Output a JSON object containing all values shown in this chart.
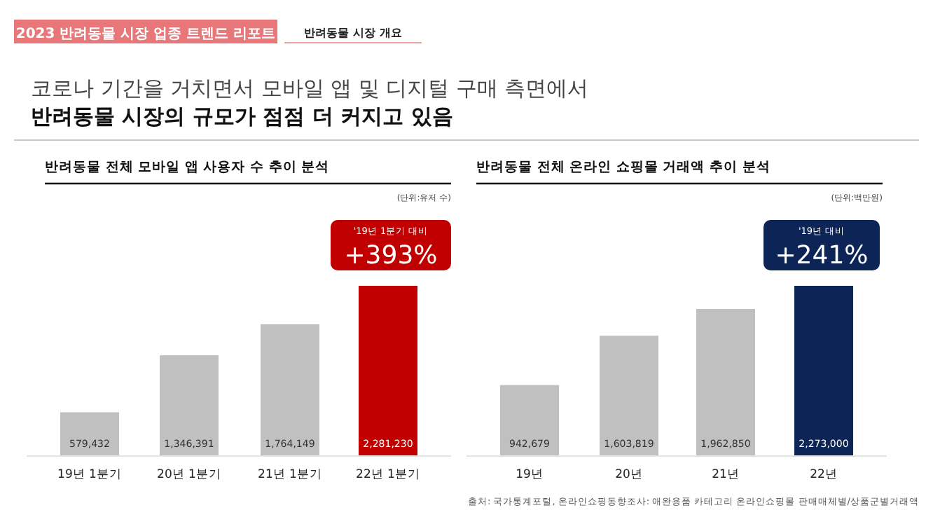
{
  "chart_data": [
    {
      "type": "other",
      "title": "코로나 기간을 거치면서 모바일 앱 및 디지털 구매 측면에서",
      "subtitle": "반려동물 시장의 규모가 점점 더 커지고 있음",
      "annotations": [
        "2023 반려동물 시장 업종 트렌드 리포트",
        "반려동물 시장 개요",
        "출처: 국가통계포털, 온라인쇼핑동향조사: 애완용품 카테고리 온라인쇼핑몰 판매매체별/상품군별거래액"
      ]
    },
    {
      "type": "bar",
      "title": "반려동물 전체 모바일 앱 사용자 수 추이 분석",
      "categories": [
        "19년 1분기",
        "20년 1분기",
        "21년 1분기",
        "22년 1분기"
      ],
      "values": [
        579432,
        1346391,
        1764149,
        2281230
      ],
      "colors": [
        "#c0c0c0",
        "#c0c0c0",
        "#c0c0c0",
        "#c00000"
      ],
      "value_labels": [
        "579,432",
        "1,346,391",
        "1,764,149",
        "2,281,230"
      ],
      "annotations": [
        "(단위:유저 수)",
        "'19년 1분기 대비 +393%"
      ]
    },
    {
      "type": "bar",
      "title": "반려동물 전체 온라인 쇼핑몰 거래액 추이 분석",
      "categories": [
        "19년",
        "20년",
        "21년",
        "22년"
      ],
      "values": [
        942679,
        1603819,
        1962850,
        2273000
      ],
      "colors": [
        "#c0c0c0",
        "#c0c0c0",
        "#c0c0c0",
        "#0d2456"
      ],
      "value_labels": [
        "942,679",
        "1,603,819",
        "1,962,850",
        "2,273,000"
      ],
      "annotations": [
        "(단위:백만원)",
        "'19년 대비 +241%"
      ]
    }
  ]
}
